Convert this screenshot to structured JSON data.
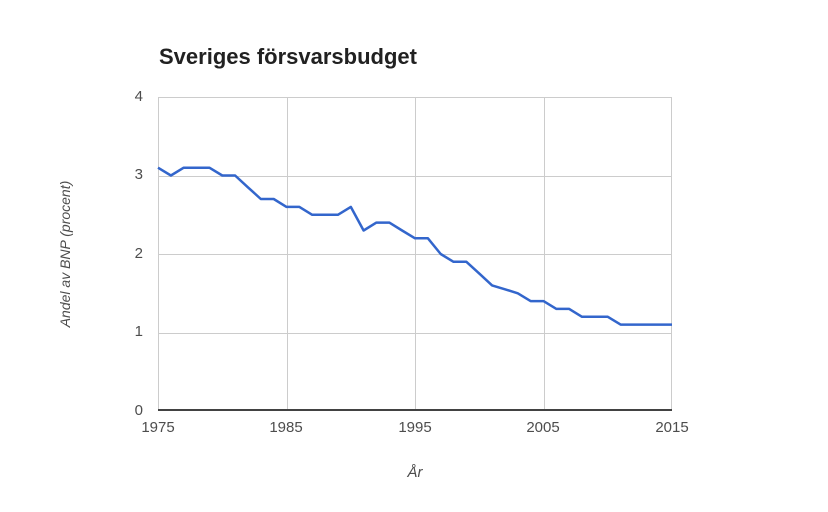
{
  "chart_data": {
    "type": "line",
    "title": "Sveriges försvarsbudget",
    "xlabel": "År",
    "ylabel": "Andel av BNP (procent)",
    "x": [
      1975,
      1976,
      1977,
      1978,
      1979,
      1980,
      1981,
      1982,
      1983,
      1984,
      1985,
      1986,
      1987,
      1988,
      1989,
      1990,
      1991,
      1992,
      1993,
      1994,
      1995,
      1996,
      1997,
      1998,
      1999,
      2000,
      2001,
      2002,
      2003,
      2004,
      2005,
      2006,
      2007,
      2008,
      2009,
      2010,
      2011,
      2012,
      2013,
      2014,
      2015
    ],
    "values": [
      3.1,
      3.0,
      3.1,
      3.1,
      3.1,
      3.0,
      3.0,
      2.85,
      2.7,
      2.7,
      2.6,
      2.6,
      2.5,
      2.5,
      2.5,
      2.6,
      2.3,
      2.4,
      2.4,
      2.3,
      2.2,
      2.2,
      2.0,
      1.9,
      1.9,
      1.75,
      1.6,
      1.55,
      1.5,
      1.4,
      1.4,
      1.3,
      1.3,
      1.2,
      1.2,
      1.2,
      1.1,
      1.1,
      1.1,
      1.1,
      1.1
    ],
    "xlim": [
      1975,
      2015
    ],
    "ylim": [
      0,
      4
    ],
    "xtick_labels": [
      "1975",
      "1985",
      "1995",
      "2005",
      "2015"
    ],
    "ytick_labels": [
      "4",
      "3",
      "2",
      "1",
      "0"
    ],
    "grid": true,
    "legend_position": "none",
    "line_color": "#3366cc",
    "grid_color": "#cccccc",
    "axis_color": "#424242",
    "label_color": "#4d4d4d"
  }
}
